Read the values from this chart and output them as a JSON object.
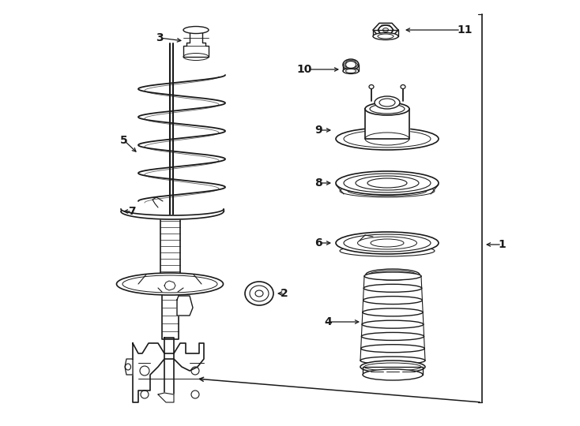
{
  "bg_color": "#ffffff",
  "line_color": "#1a1a1a",
  "text_color": "#1a1a1a",
  "fig_width": 7.34,
  "fig_height": 5.4,
  "dpi": 100,
  "lw": 0.9
}
